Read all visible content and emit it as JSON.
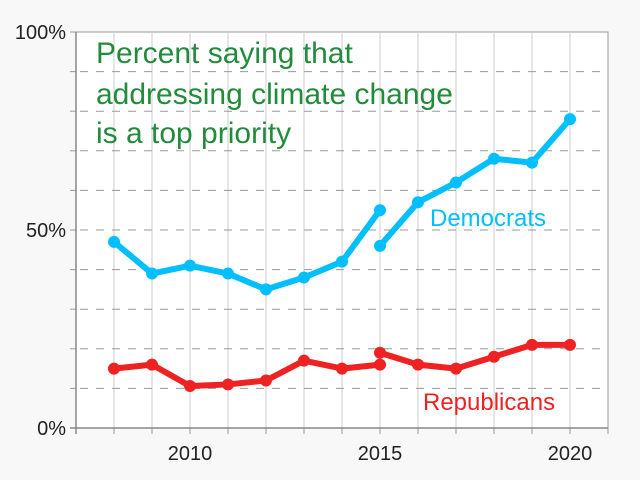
{
  "chart_data": {
    "type": "line",
    "title_lines": [
      "Percent saying that",
      "addressing climate change",
      "is a top priority"
    ],
    "xlim": [
      2007,
      2021
    ],
    "ylim": [
      0,
      100
    ],
    "x_ticks": [
      2010,
      2015,
      2020
    ],
    "y_ticks": [
      {
        "value": 0,
        "label": "0%"
      },
      {
        "value": 50,
        "label": "50%"
      },
      {
        "value": 100,
        "label": "100%"
      }
    ],
    "grid": {
      "horizontal_every": 10,
      "vertical_every": 1
    },
    "series": [
      {
        "name": "Democrats",
        "color": "#00bfff",
        "segments": [
          {
            "x": [
              2008,
              2009,
              2010,
              2011,
              2012,
              2013,
              2014,
              2015
            ],
            "y": [
              47,
              39,
              41,
              39,
              35,
              38,
              42,
              55
            ]
          },
          {
            "x": [
              2015,
              2016,
              2017,
              2018,
              2019,
              2020
            ],
            "y": [
              46,
              57,
              62,
              68,
              67,
              78
            ]
          }
        ]
      },
      {
        "name": "Republicans",
        "color": "#ee2222",
        "segments": [
          {
            "x": [
              2008,
              2009,
              2010,
              2011,
              2012,
              2013,
              2014,
              2015
            ],
            "y": [
              15,
              16,
              10.6,
              11,
              12,
              17,
              15,
              16
            ]
          },
          {
            "x": [
              2015,
              2016,
              2017,
              2018,
              2019,
              2020
            ],
            "y": [
              19,
              16,
              15,
              18,
              21,
              21
            ]
          }
        ]
      }
    ]
  }
}
